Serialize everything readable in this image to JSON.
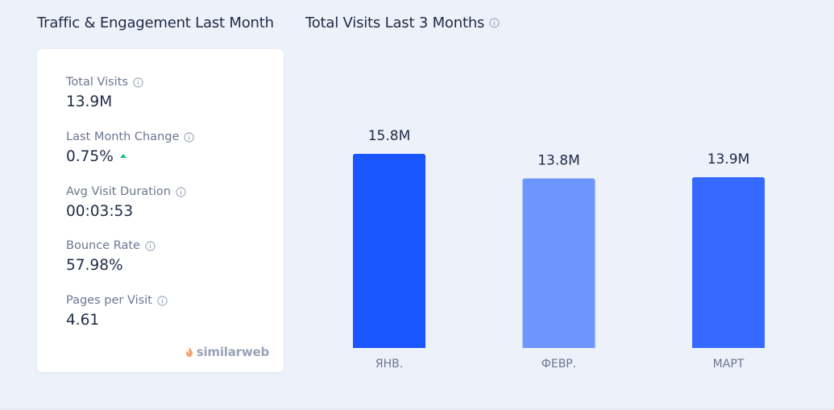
{
  "titles": {
    "engagement": "Traffic & Engagement Last Month",
    "visits": "Total Visits Last 3 Months"
  },
  "metrics": [
    {
      "label": "Total Visits",
      "value": "13.9M"
    },
    {
      "label": "Last Month Change",
      "value": "0.75%",
      "trend": "up"
    },
    {
      "label": "Avg Visit Duration",
      "value": "00:03:53"
    },
    {
      "label": "Bounce Rate",
      "value": "57.98%"
    },
    {
      "label": "Pages per Visit",
      "value": "4.61"
    }
  ],
  "brand": "similarweb",
  "colors": {
    "bar_dark": "#1a56ff",
    "bar_light": "#6d95fc",
    "bar_mid": "#3569ff",
    "trend_up": "#1ebc7a"
  },
  "chart_data": {
    "type": "bar",
    "title": "Total Visits Last 3 Months",
    "categories": [
      "ЯНВ.",
      "ФЕВР.",
      "МАРТ"
    ],
    "values": [
      15.8,
      13.8,
      13.9
    ],
    "labels": [
      "15.8M",
      "13.8M",
      "13.9M"
    ],
    "bar_colors": [
      "#1a56ff",
      "#6d95fc",
      "#3569ff"
    ],
    "unit": "M",
    "ylim": [
      0,
      15.8
    ],
    "grid": false,
    "legend": "none"
  }
}
